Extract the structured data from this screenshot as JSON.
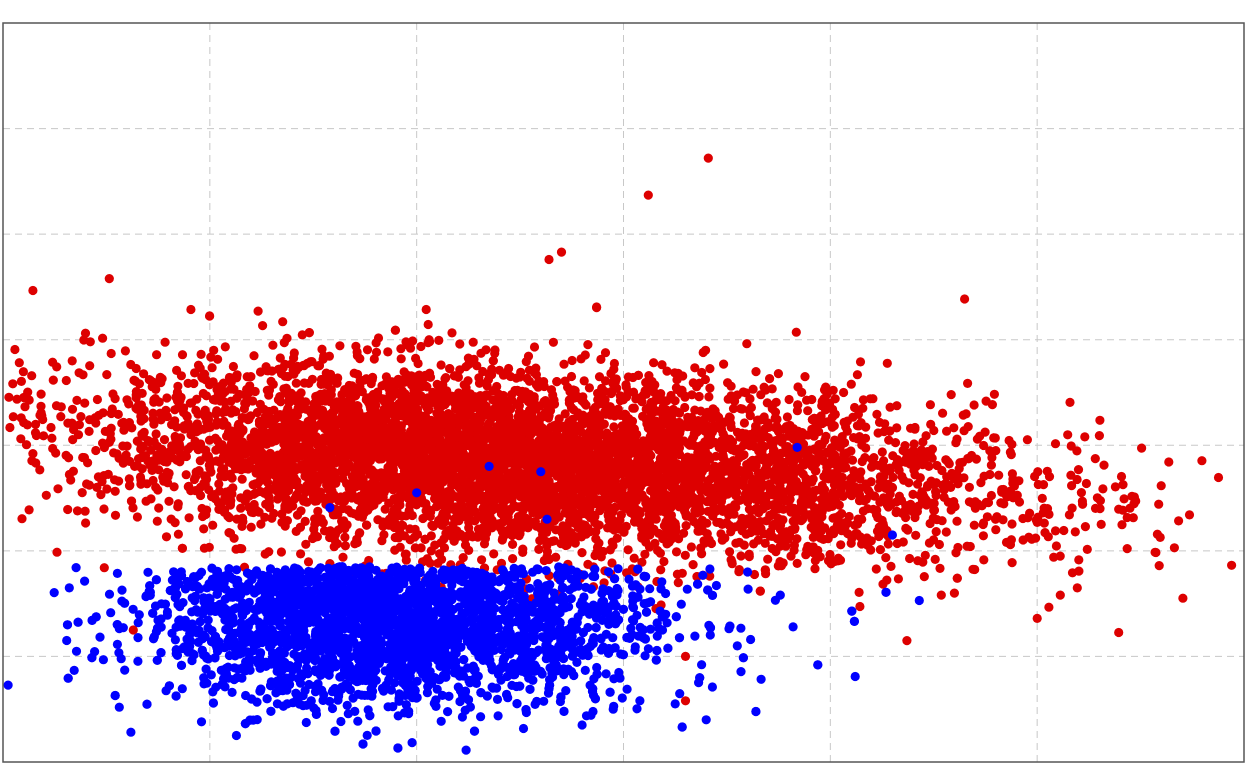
{
  "chart_data": {
    "type": "scatter",
    "title": "",
    "xlabel": "",
    "ylabel": "",
    "xlim": [
      0,
      6
    ],
    "ylim": [
      0,
      7
    ],
    "grid": true,
    "colors": {
      "series_a": "#dd0000",
      "series_b": "#0000ff",
      "grid": "#c8c8c8",
      "frame": "#555555"
    },
    "series": [
      {
        "color": "#dd0000",
        "cluster": {
          "center": [
            2.45,
            2.85
          ],
          "spread": [
            1.15,
            0.42
          ],
          "count": 6000
        },
        "outliers": [
          [
            3.41,
            5.72
          ],
          [
            3.12,
            5.37
          ],
          [
            2.7,
            4.83
          ],
          [
            2.64,
            4.76
          ],
          [
            2.87,
            4.31
          ],
          [
            2.06,
            4.0
          ],
          [
            1.97,
            3.92
          ],
          [
            2.81,
            3.61
          ],
          [
            3.52,
            3.56
          ],
          [
            3.68,
            3.55
          ],
          [
            4.16,
            3.43
          ],
          [
            2.4,
            3.71
          ],
          [
            2.78,
            3.46
          ],
          [
            3.18,
            3.49
          ],
          [
            0.49,
            1.84
          ],
          [
            0.63,
            1.25
          ],
          [
            5.2,
            2.77
          ],
          [
            5.47,
            2.51
          ],
          [
            5.59,
            1.86
          ],
          [
            5.0,
            1.36
          ],
          [
            4.37,
            1.15
          ],
          [
            3.3,
            0.58
          ],
          [
            4.5,
            3.14
          ],
          [
            4.8,
            2.95
          ],
          [
            3.3,
            1.0
          ],
          [
            4.8,
            2.2
          ],
          [
            5.05,
            2.4
          ],
          [
            4.6,
            1.6
          ]
        ]
      },
      {
        "color": "#0000ff",
        "cluster": {
          "center": [
            1.85,
            1.3
          ],
          "spread": [
            0.55,
            0.38
          ],
          "count": 3500
        },
        "outliers": [
          [
            3.84,
            2.98
          ],
          [
            2.6,
            2.75
          ],
          [
            2.0,
            2.55
          ],
          [
            1.58,
            2.41
          ],
          [
            4.12,
            0.81
          ],
          [
            3.4,
            0.4
          ],
          [
            3.43,
            0.71
          ],
          [
            3.25,
            0.55
          ],
          [
            4.43,
            1.53
          ],
          [
            3.82,
            1.28
          ],
          [
            2.35,
            2.8
          ],
          [
            3.6,
            1.8
          ],
          [
            2.63,
            2.3
          ],
          [
            4.3,
            2.15
          ],
          [
            3.1,
            1.5
          ],
          [
            3.55,
            1.1
          ],
          [
            2.8,
            0.35
          ],
          [
            2.95,
            0.5
          ]
        ]
      }
    ]
  }
}
